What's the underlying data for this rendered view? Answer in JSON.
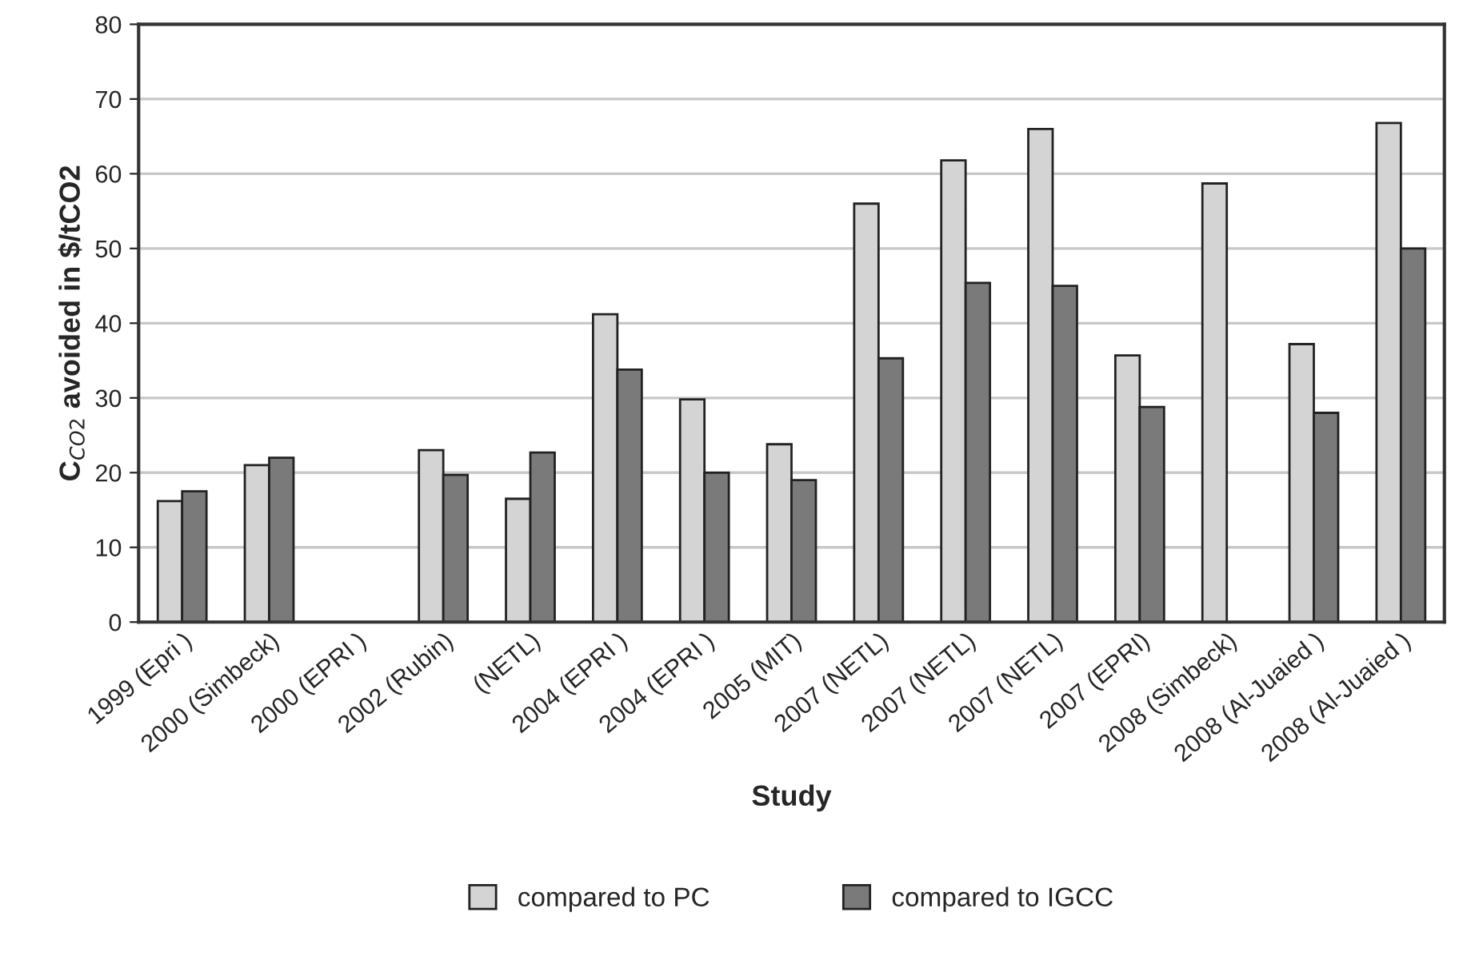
{
  "chart_data": {
    "type": "bar",
    "xlabel": "Study",
    "ylabel": "C$_{CO2}$ avoided in $/tCO2",
    "categories": [
      "1999 (Epri )",
      "2000 (Simbeck)",
      "2000 (EPRI )",
      "2002 (Rubin)",
      "(NETL)",
      "2004 (EPRI )",
      "2004 (EPRI )",
      "2005 (MIT)",
      "2007 (NETL)",
      "2007 (NETL)",
      "2007 (NETL)",
      "2007 (EPRI)",
      "2008 (Simbeck)",
      "2008 (Al-Juaied )",
      "2008 (Al-Juaied )"
    ],
    "series": [
      {
        "name": "compared to PC",
        "color": "#d4d4d4",
        "values": [
          16.2,
          21,
          null,
          23,
          16.5,
          41.2,
          29.8,
          23.8,
          56,
          61.8,
          66,
          35.7,
          58.7,
          37.2,
          66.8
        ]
      },
      {
        "name": "compared to IGCC",
        "color": "#7a7a7a",
        "values": [
          17.5,
          22,
          null,
          19.7,
          22.7,
          33.8,
          20,
          19,
          35.3,
          45.4,
          45,
          28.8,
          null,
          28,
          50
        ]
      }
    ],
    "ylim": [
      0,
      80
    ],
    "yticks": [
      0,
      10,
      20,
      30,
      40,
      50,
      60,
      70,
      80
    ],
    "grid": "y",
    "legend": "bottom"
  }
}
